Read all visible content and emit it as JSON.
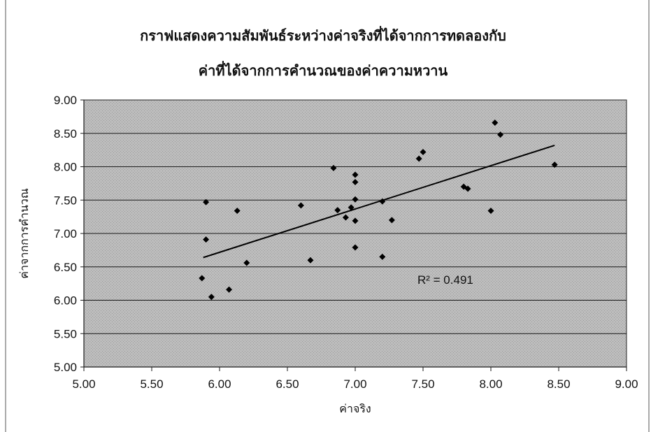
{
  "chart_data": {
    "type": "scatter",
    "title_line1": "กราฟแสดงความสัมพันธ์ระหว่างค่าจริงที่ได้จากการทดลองกับ",
    "title_line2": "ค่าที่ได้จากการคำนวณของค่าความหวาน",
    "xlabel": "ค่าจริง",
    "ylabel": "ค่าจากการคำนวณ",
    "xlim": [
      5.0,
      9.0
    ],
    "ylim": [
      5.0,
      9.0
    ],
    "xticks": [
      "5.00",
      "5.50",
      "6.00",
      "6.50",
      "7.00",
      "7.50",
      "8.00",
      "8.50",
      "9.00"
    ],
    "yticks": [
      "5.00",
      "5.50",
      "6.00",
      "6.50",
      "7.00",
      "7.50",
      "8.00",
      "8.50",
      "9.00"
    ],
    "grid": true,
    "gridlines": "horizontal",
    "legend": "none",
    "plot_background": "#b9b9b9",
    "marker_color": "#000000",
    "trendline": {
      "type": "linear",
      "x_start": 5.88,
      "y_start": 6.64,
      "x_end": 8.47,
      "y_end": 8.32,
      "r_squared_label": "R² = 0.491"
    },
    "points": [
      {
        "x": 5.87,
        "y": 6.33
      },
      {
        "x": 5.9,
        "y": 7.47
      },
      {
        "x": 5.9,
        "y": 6.91
      },
      {
        "x": 5.94,
        "y": 6.05
      },
      {
        "x": 6.07,
        "y": 6.16
      },
      {
        "x": 6.13,
        "y": 7.34
      },
      {
        "x": 6.2,
        "y": 6.56
      },
      {
        "x": 6.6,
        "y": 7.42
      },
      {
        "x": 6.67,
        "y": 6.6
      },
      {
        "x": 6.84,
        "y": 7.98
      },
      {
        "x": 6.87,
        "y": 7.35
      },
      {
        "x": 6.93,
        "y": 7.24
      },
      {
        "x": 6.97,
        "y": 7.39
      },
      {
        "x": 7.0,
        "y": 7.88
      },
      {
        "x": 7.0,
        "y": 7.77
      },
      {
        "x": 7.0,
        "y": 7.51
      },
      {
        "x": 7.0,
        "y": 7.19
      },
      {
        "x": 7.0,
        "y": 6.79
      },
      {
        "x": 7.2,
        "y": 7.48
      },
      {
        "x": 7.2,
        "y": 6.65
      },
      {
        "x": 7.27,
        "y": 7.2
      },
      {
        "x": 7.47,
        "y": 8.12
      },
      {
        "x": 7.5,
        "y": 8.22
      },
      {
        "x": 7.8,
        "y": 7.7
      },
      {
        "x": 7.83,
        "y": 7.67
      },
      {
        "x": 8.0,
        "y": 7.34
      },
      {
        "x": 8.03,
        "y": 8.66
      },
      {
        "x": 8.07,
        "y": 8.48
      },
      {
        "x": 8.47,
        "y": 8.03
      }
    ]
  }
}
